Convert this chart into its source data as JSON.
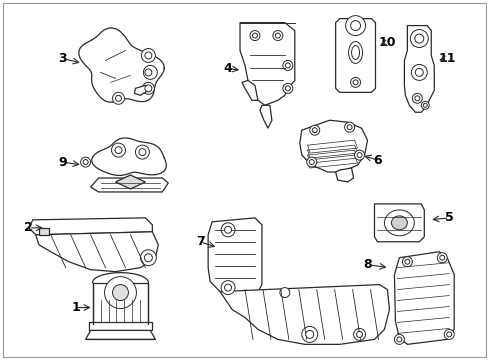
{
  "bg_color": "#ffffff",
  "line_color": "#2a2a2a",
  "figsize": [
    4.89,
    3.6
  ],
  "dpi": 100,
  "border_color": "#aaaaaa"
}
